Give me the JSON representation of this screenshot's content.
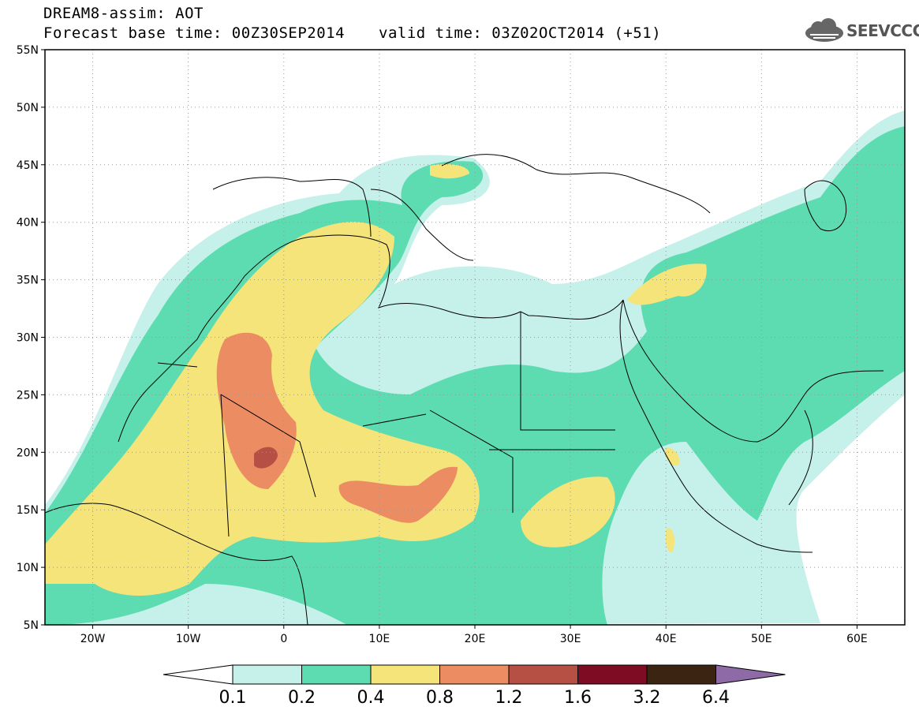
{
  "header": {
    "title": "DREAM8-assim: AOT",
    "base_time": "Forecast base time: 00Z30SEP2014",
    "valid_time": "valid time: 03Z02OCT2014 (+51)"
  },
  "logo": {
    "text": "SEEVCCC",
    "icon": "cloud-icon"
  },
  "map": {
    "lat_labels": [
      "55N",
      "50N",
      "45N",
      "40N",
      "35N",
      "30N",
      "25N",
      "20N",
      "15N",
      "10N",
      "5N"
    ],
    "lon_labels": [
      "20W",
      "10W",
      "0",
      "10E",
      "20E",
      "30E",
      "40E",
      "50E",
      "60E"
    ],
    "lat_range": [
      5,
      55
    ],
    "lon_range": [
      -25,
      65
    ],
    "grid": "dotted"
  },
  "legend": {
    "colors": [
      "#c6f0ea",
      "#5ddcb2",
      "#f5e47a",
      "#ec8c62",
      "#b65044",
      "#7e0c22",
      "#3c2412",
      "#8e6aa6"
    ],
    "labels": [
      "0.1",
      "0.2",
      "0.4",
      "0.8",
      "1.2",
      "1.6",
      "3.2",
      "6.4"
    ]
  }
}
